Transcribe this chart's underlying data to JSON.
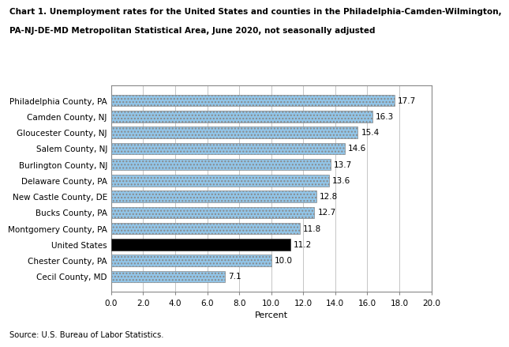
{
  "title_line1": "Chart 1. Unemployment rates for the United States and counties in the Philadelphia-Camden-Wilmington,",
  "title_line2": "PA-NJ-DE-MD Metropolitan Statistical Area, June 2020, not seasonally adjusted",
  "categories": [
    "Cecil County, MD",
    "Chester County, PA",
    "United States",
    "Montgomery County, PA",
    "Bucks County, PA",
    "New Castle County, DE",
    "Delaware County, PA",
    "Burlington County, NJ",
    "Salem County, NJ",
    "Gloucester County, NJ",
    "Camden County, NJ",
    "Philadelphia County, PA"
  ],
  "values": [
    7.1,
    10.0,
    11.2,
    11.8,
    12.7,
    12.8,
    13.6,
    13.7,
    14.6,
    15.4,
    16.3,
    17.7
  ],
  "bar_colors": [
    "#92C5E8",
    "#92C5E8",
    "#000000",
    "#92C5E8",
    "#92C5E8",
    "#92C5E8",
    "#92C5E8",
    "#92C5E8",
    "#92C5E8",
    "#92C5E8",
    "#92C5E8",
    "#92C5E8"
  ],
  "xlabel": "Percent",
  "xlim": [
    0,
    20.0
  ],
  "xticks": [
    0.0,
    2.0,
    4.0,
    6.0,
    8.0,
    10.0,
    12.0,
    14.0,
    16.0,
    18.0,
    20.0
  ],
  "xtick_labels": [
    "0.0",
    "2.0",
    "4.0",
    "6.0",
    "8.0",
    "10.0",
    "12.0",
    "14.0",
    "16.0",
    "18.0",
    "20.0"
  ],
  "source": "Source: U.S. Bureau of Labor Statistics.",
  "bar_edge_color": "#888888",
  "grid_color": "#bbbbbb",
  "hatch": "....",
  "bg_color": "#ffffff"
}
